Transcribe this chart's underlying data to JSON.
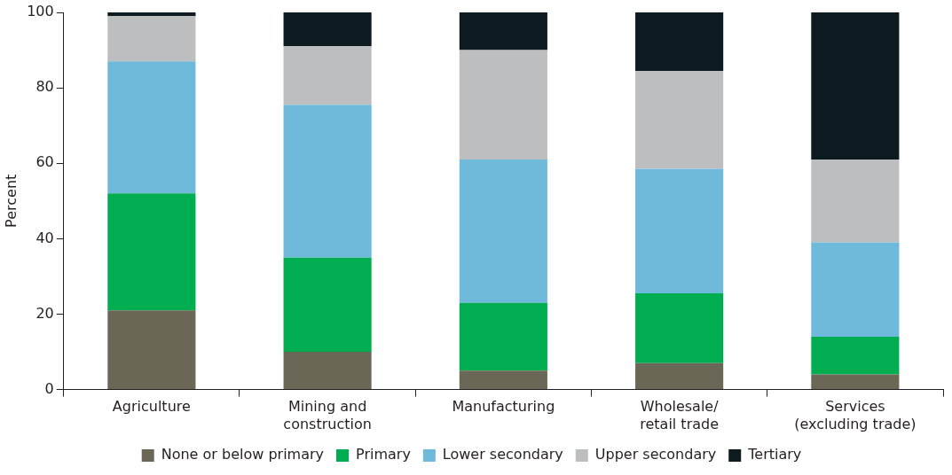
{
  "chart_data": {
    "type": "bar",
    "stacked": true,
    "ylabel": "Percent",
    "ylim": [
      0,
      100
    ],
    "yticks": [
      0,
      20,
      40,
      60,
      80,
      100
    ],
    "grid": false,
    "legend": "bottom",
    "categories": [
      "Agriculture",
      "Mining and\nconstruction",
      "Manufacturing",
      "Wholesale/\nretail trade",
      "Services\n(excluding trade)"
    ],
    "series": [
      {
        "name": "None or below primary",
        "color": "#6b6757",
        "values": [
          21,
          10,
          5,
          7,
          4
        ]
      },
      {
        "name": "Primary",
        "color": "#00ad50",
        "values": [
          31,
          25,
          18,
          18.5,
          10
        ]
      },
      {
        "name": "Lower secondary",
        "color": "#6fbadb",
        "values": [
          35,
          40.5,
          38,
          33,
          25
        ]
      },
      {
        "name": "Upper secondary",
        "color": "#bdbec0",
        "values": [
          12,
          15.5,
          29,
          26,
          22
        ]
      },
      {
        "name": "Tertiary",
        "color": "#0d1b20",
        "values": [
          1,
          9,
          10,
          15.5,
          39
        ]
      }
    ]
  }
}
